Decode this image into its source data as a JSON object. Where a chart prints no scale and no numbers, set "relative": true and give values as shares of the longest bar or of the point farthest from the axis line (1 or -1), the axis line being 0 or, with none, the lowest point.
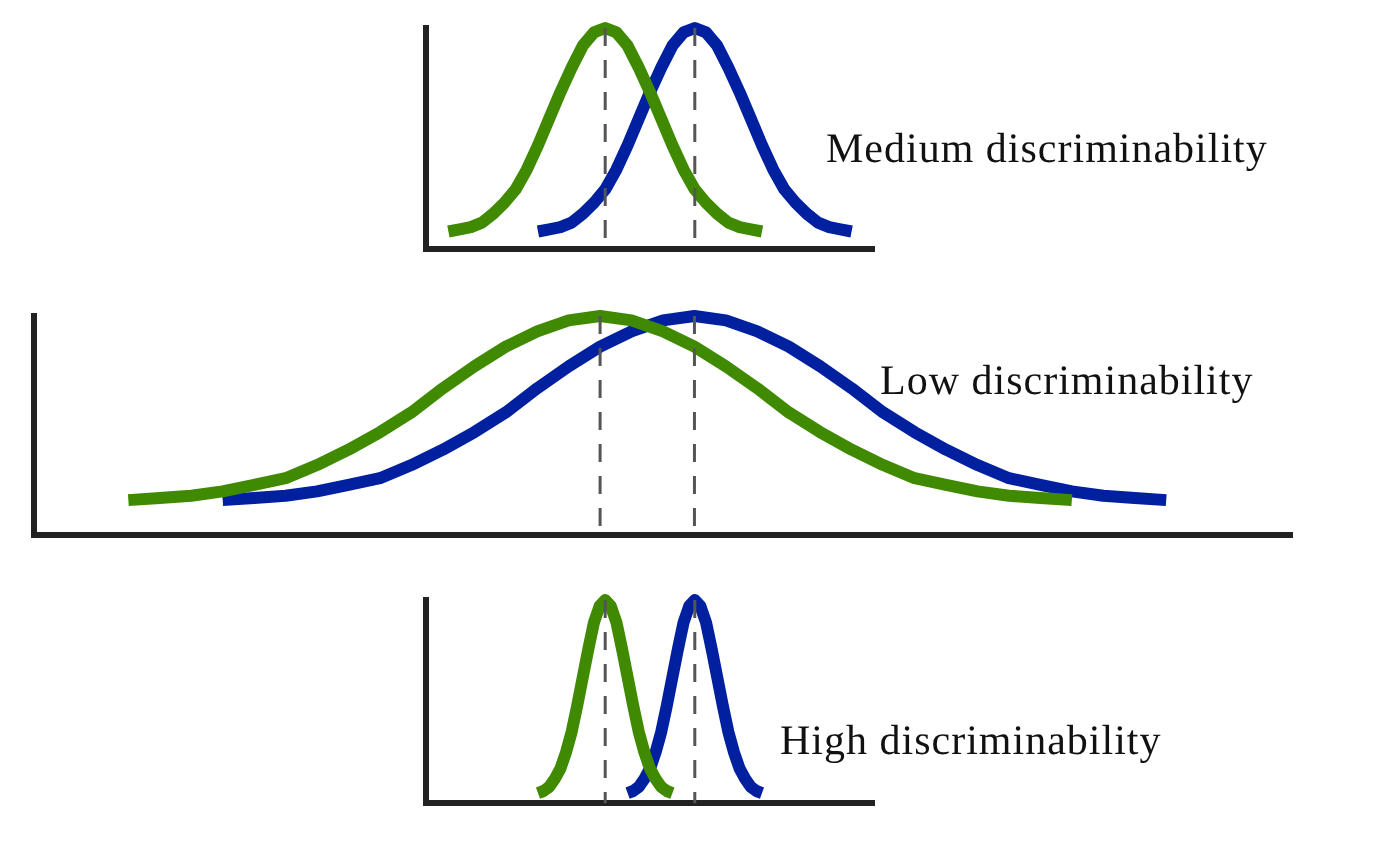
{
  "chart_data": [
    {
      "type": "line",
      "title": "Medium discriminability",
      "relative": true,
      "marker": "none",
      "grid": false,
      "categories": [
        null,
        null,
        null,
        null,
        null,
        null,
        null,
        null,
        null,
        null,
        null,
        null,
        null,
        null,
        null,
        null,
        null,
        null,
        null,
        null,
        null,
        null,
        null,
        null,
        null,
        null,
        null,
        null,
        null,
        null,
        null,
        null,
        null,
        null,
        null,
        null,
        null,
        null,
        null,
        null,
        null
      ],
      "series": [
        {
          "color": "#3f8a00",
          "values": [
            null,
            null,
            0.08,
            0.09,
            0.1,
            0.12,
            0.16,
            0.21,
            0.27,
            0.36,
            0.47,
            0.59,
            0.71,
            0.82,
            0.92,
            0.98,
            1.0,
            0.98,
            0.92,
            0.82,
            0.71,
            0.59,
            0.47,
            0.36,
            0.27,
            0.21,
            0.16,
            0.12,
            0.1,
            0.09,
            0.08,
            null,
            null,
            null,
            null,
            null,
            null,
            null,
            null,
            null,
            null
          ]
        },
        {
          "color": "#00209f",
          "values": [
            null,
            null,
            null,
            null,
            null,
            null,
            null,
            null,
            null,
            null,
            0.08,
            0.09,
            0.1,
            0.12,
            0.16,
            0.21,
            0.27,
            0.36,
            0.47,
            0.59,
            0.71,
            0.82,
            0.92,
            0.98,
            1.0,
            0.98,
            0.92,
            0.82,
            0.71,
            0.59,
            0.47,
            0.36,
            0.27,
            0.21,
            0.16,
            0.12,
            0.1,
            0.09,
            0.08,
            null,
            null
          ]
        }
      ]
    },
    {
      "type": "line",
      "title": "Low discriminability",
      "relative": true,
      "marker": "none",
      "grid": false,
      "categories": [
        null,
        null,
        null,
        null,
        null,
        null,
        null,
        null,
        null,
        null,
        null,
        null,
        null,
        null,
        null,
        null,
        null,
        null,
        null,
        null,
        null,
        null,
        null,
        null,
        null,
        null,
        null,
        null,
        null,
        null,
        null,
        null,
        null,
        null,
        null,
        null,
        null,
        null,
        null,
        null,
        null
      ],
      "series": [
        {
          "color": "#3f8a00",
          "values": [
            null,
            null,
            null,
            0.16,
            0.17,
            0.18,
            0.2,
            0.23,
            0.26,
            0.32,
            0.39,
            0.47,
            0.56,
            0.67,
            0.77,
            0.86,
            0.93,
            0.98,
            1.0,
            0.98,
            0.93,
            0.86,
            0.77,
            0.67,
            0.56,
            0.47,
            0.39,
            0.32,
            0.26,
            0.23,
            0.2,
            0.18,
            0.17,
            0.16,
            null,
            null,
            null,
            null,
            null,
            null,
            null
          ]
        },
        {
          "color": "#00209f",
          "values": [
            null,
            null,
            null,
            null,
            null,
            null,
            0.16,
            0.17,
            0.18,
            0.2,
            0.23,
            0.26,
            0.32,
            0.39,
            0.47,
            0.56,
            0.67,
            0.77,
            0.86,
            0.93,
            0.98,
            1.0,
            0.98,
            0.93,
            0.86,
            0.77,
            0.67,
            0.56,
            0.47,
            0.39,
            0.32,
            0.26,
            0.23,
            0.2,
            0.18,
            0.17,
            0.16,
            null,
            null,
            null,
            null
          ]
        }
      ]
    },
    {
      "type": "line",
      "title": "High discriminability",
      "relative": true,
      "marker": "none",
      "grid": false,
      "categories": [
        null,
        null,
        null,
        null,
        null,
        null,
        null,
        null,
        null,
        null,
        null,
        null,
        null,
        null,
        null,
        null,
        null,
        null,
        null,
        null,
        null,
        null,
        null,
        null,
        null,
        null,
        null,
        null,
        null,
        null,
        null,
        null,
        null,
        null,
        null,
        null,
        null,
        null,
        null,
        null,
        null,
        null,
        null,
        null,
        null,
        null,
        null,
        null,
        null,
        null,
        null,
        null,
        null,
        null,
        null,
        null,
        null,
        null,
        null,
        null,
        null,
        null,
        null,
        null,
        null,
        null,
        null,
        null,
        null,
        null,
        null,
        null,
        null,
        null,
        null,
        null,
        null,
        null,
        null,
        null,
        null
      ],
      "series": [
        {
          "color": "#3f8a00",
          "values": [
            null,
            null,
            null,
            null,
            null,
            null,
            null,
            null,
            null,
            null,
            null,
            null,
            null,
            null,
            null,
            null,
            null,
            null,
            null,
            null,
            0.05,
            0.06,
            0.08,
            0.12,
            0.17,
            0.25,
            0.35,
            0.48,
            0.62,
            0.76,
            0.89,
            0.97,
            1.0,
            0.97,
            0.89,
            0.76,
            0.62,
            0.48,
            0.35,
            0.25,
            0.17,
            0.12,
            0.08,
            0.06,
            0.05,
            null,
            null,
            null,
            null,
            null,
            null,
            null,
            null,
            null,
            null,
            null,
            null,
            null,
            null,
            null,
            null,
            null,
            null,
            null,
            null,
            null,
            null,
            null,
            null,
            null,
            null,
            null,
            null,
            null,
            null,
            null,
            null,
            null,
            null,
            null,
            null
          ]
        },
        {
          "color": "#00209f",
          "values": [
            null,
            null,
            null,
            null,
            null,
            null,
            null,
            null,
            null,
            null,
            null,
            null,
            null,
            null,
            null,
            null,
            null,
            null,
            null,
            null,
            null,
            null,
            null,
            null,
            null,
            null,
            null,
            null,
            null,
            null,
            null,
            null,
            null,
            null,
            null,
            null,
            0.05,
            0.06,
            0.08,
            0.12,
            0.17,
            0.25,
            0.35,
            0.48,
            0.62,
            0.76,
            0.89,
            0.97,
            1.0,
            0.97,
            0.89,
            0.76,
            0.62,
            0.48,
            0.35,
            0.25,
            0.17,
            0.12,
            0.08,
            0.06,
            0.05,
            null,
            null,
            null,
            null,
            null,
            null,
            null,
            null,
            null,
            null,
            null,
            null,
            null,
            null,
            null,
            null,
            null,
            null,
            null,
            null
          ]
        }
      ]
    }
  ]
}
